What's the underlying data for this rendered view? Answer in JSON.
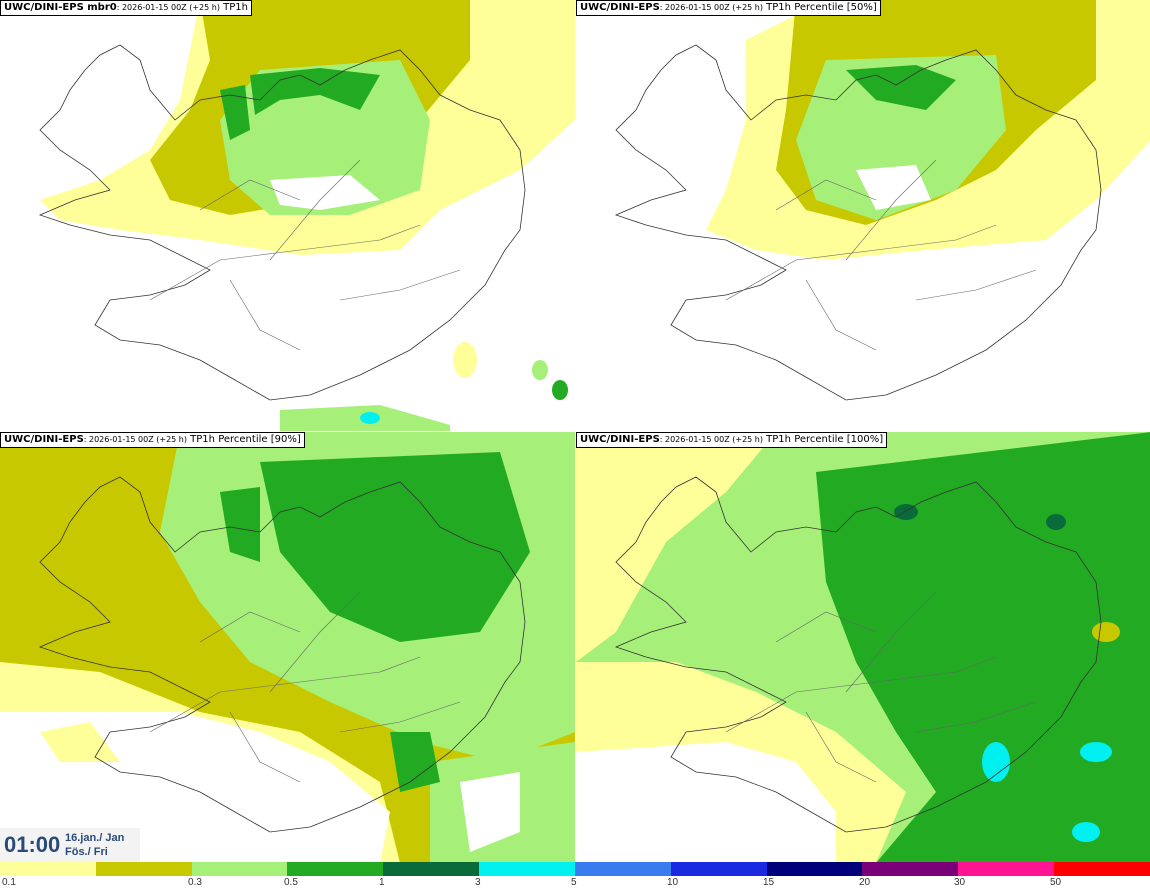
{
  "panels": [
    {
      "model": "UWC/DINI-EPS mbr0",
      "run": ": 2026-01-15 00Z (+25 h)",
      "field": "TP1h"
    },
    {
      "model": "UWC/DINI-EPS",
      "run": ": 2026-01-15 00Z (+25 h)",
      "field": "TP1h Percentile [50%]"
    },
    {
      "model": "UWC/DINI-EPS",
      "run": ": 2026-01-15 00Z (+25 h)",
      "field": "TP1h Percentile [90%]"
    },
    {
      "model": "UWC/DINI-EPS",
      "run": ": 2026-01-15 00Z (+25 h)",
      "field": "TP1h Percentile [100%]"
    }
  ],
  "valid_time": {
    "hour": "01:00",
    "date_line1": "16.jan./ Jan",
    "date_line2": "Fös./ Fri"
  },
  "colorbar": {
    "colors": [
      "#ffff99",
      "#c8c800",
      "#a6f07a",
      "#22aa22",
      "#0a6b3a",
      "#00f0f0",
      "#3a7cf0",
      "#1a2ae0",
      "#00007a",
      "#7a007a",
      "#ff1493",
      "#ff0000"
    ],
    "ticks": [
      "0.1",
      "0.3",
      "0.5",
      "1",
      "3",
      "5",
      "10",
      "15",
      "20",
      "30",
      "50"
    ]
  }
}
